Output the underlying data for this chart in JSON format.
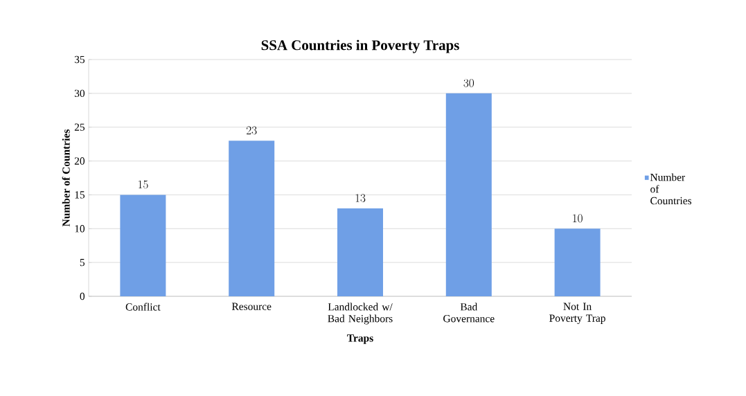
{
  "chart_data": {
    "type": "bar",
    "title": "SSA Countries in Poverty Traps",
    "xlabel": "Traps",
    "ylabel": "Number of Countries",
    "categories": [
      "Conflict",
      "Resource",
      "Landlocked w/ Bad Neighbors",
      "Bad Governance",
      "Not In Poverty Trap"
    ],
    "series": [
      {
        "name": "Number of Countries",
        "color": "#6f9fe6",
        "values": [
          15,
          23,
          13,
          30,
          10
        ]
      }
    ],
    "ylim": [
      0,
      35
    ],
    "yticks": [
      0,
      5,
      10,
      15,
      20,
      25,
      30,
      35
    ],
    "grid": "y",
    "legend": "right",
    "data_labels": true
  }
}
